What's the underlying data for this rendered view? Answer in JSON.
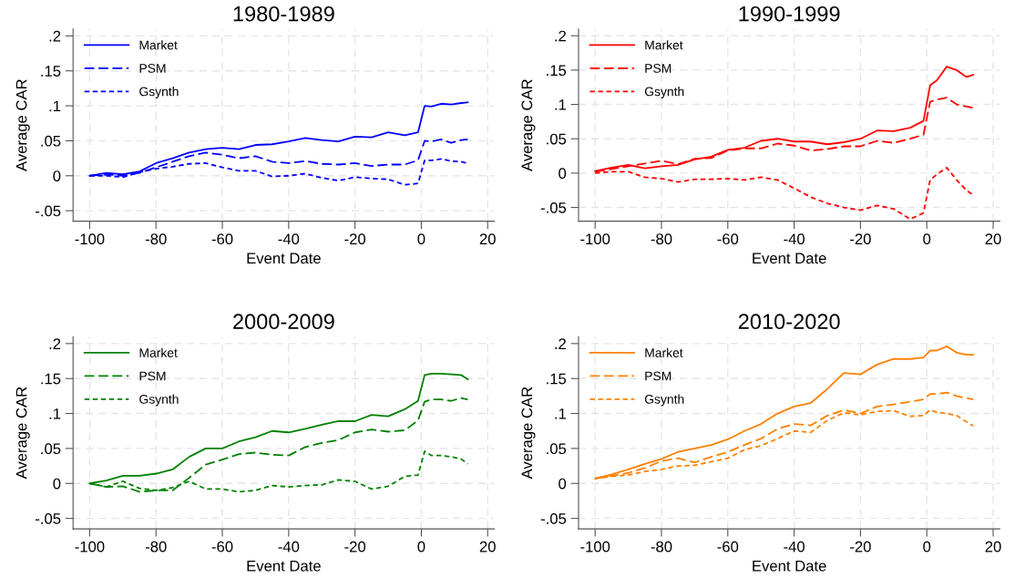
{
  "chart_data": [
    {
      "type": "line",
      "title": "1980-1989",
      "xlabel": "Event Date",
      "ylabel": "Average CAR",
      "xlim": [
        -105,
        22
      ],
      "ylim": [
        -0.065,
        0.21
      ],
      "xticks": [
        -100,
        -80,
        -60,
        -40,
        -20,
        0,
        20
      ],
      "yticks": [
        {
          "value": -0.05,
          "label": "-.05"
        },
        0,
        {
          "value": 0.05,
          "label": ".05"
        },
        {
          "value": 0.1,
          "label": ".1"
        },
        {
          "value": 0.15,
          "label": ".15"
        },
        {
          "value": 0.2,
          "label": ".2"
        }
      ],
      "grid": true,
      "legend": "top left",
      "x": [
        -100,
        -95,
        -90,
        -85,
        -80,
        -75,
        -70,
        -65,
        -60,
        -55,
        -50,
        -45,
        -40,
        -35,
        -30,
        -25,
        -20,
        -15,
        -10,
        -5,
        -1,
        1,
        3,
        6,
        9,
        12,
        14
      ],
      "series": [
        {
          "name": "Market",
          "color": "#0000ff",
          "line_style": "solid",
          "values": [
            0,
            0.004,
            0.002,
            0.006,
            0.018,
            0.025,
            0.033,
            0.038,
            0.04,
            0.038,
            0.044,
            0.045,
            0.049,
            0.054,
            0.051,
            0.049,
            0.056,
            0.055,
            0.062,
            0.058,
            0.062,
            0.1,
            0.099,
            0.103,
            0.102,
            0.104,
            0.105
          ]
        },
        {
          "name": "PSM",
          "color": "#0000ff",
          "line_style": "dashed",
          "values": [
            0,
            0.002,
            0,
            0.004,
            0.012,
            0.02,
            0.028,
            0.033,
            0.03,
            0.025,
            0.028,
            0.02,
            0.018,
            0.021,
            0.017,
            0.016,
            0.018,
            0.014,
            0.016,
            0.016,
            0.022,
            0.05,
            0.049,
            0.052,
            0.047,
            0.051,
            0.052
          ]
        },
        {
          "name": "Gsynth",
          "color": "#0000ff",
          "line_style": "dotted",
          "values": [
            0,
            0,
            -0.002,
            0.005,
            0.01,
            0.013,
            0.017,
            0.018,
            0.012,
            0.007,
            0.007,
            -0.001,
            0,
            0.003,
            -0.003,
            -0.007,
            -0.002,
            -0.004,
            -0.005,
            -0.013,
            -0.011,
            0.022,
            0.022,
            0.024,
            0.021,
            0.02,
            0.018
          ]
        }
      ]
    },
    {
      "type": "line",
      "title": "1990-1999",
      "xlabel": "Event Date",
      "ylabel": "Average CAR",
      "xlim": [
        -105,
        22
      ],
      "ylim": [
        -0.07,
        0.21
      ],
      "xticks": [
        -100,
        -80,
        -60,
        -40,
        -20,
        0,
        20
      ],
      "yticks": [
        {
          "value": -0.05,
          "label": "-.05"
        },
        0,
        {
          "value": 0.05,
          "label": ".05"
        },
        {
          "value": 0.1,
          "label": ".1"
        },
        {
          "value": 0.15,
          "label": ".15"
        },
        {
          "value": 0.2,
          "label": ".2"
        }
      ],
      "grid": true,
      "legend": "top left",
      "x": [
        -100,
        -95,
        -90,
        -85,
        -80,
        -75,
        -70,
        -65,
        -60,
        -55,
        -50,
        -45,
        -40,
        -35,
        -30,
        -25,
        -20,
        -15,
        -10,
        -5,
        -1,
        1,
        3,
        6,
        9,
        12,
        14
      ],
      "series": [
        {
          "name": "Market",
          "color": "#ff0000",
          "line_style": "solid",
          "values": [
            0.003,
            0.008,
            0.012,
            0.007,
            0.01,
            0.012,
            0.02,
            0.024,
            0.034,
            0.037,
            0.047,
            0.05,
            0.046,
            0.046,
            0.042,
            0.045,
            0.05,
            0.062,
            0.061,
            0.066,
            0.076,
            0.128,
            0.135,
            0.155,
            0.15,
            0.14,
            0.143
          ]
        },
        {
          "name": "PSM",
          "color": "#ff0000",
          "line_style": "dashed",
          "values": [
            0.002,
            0.006,
            0.01,
            0.014,
            0.018,
            0.013,
            0.021,
            0.022,
            0.033,
            0.036,
            0.036,
            0.043,
            0.04,
            0.033,
            0.035,
            0.039,
            0.039,
            0.047,
            0.044,
            0.05,
            0.056,
            0.104,
            0.107,
            0.11,
            0.1,
            0.097,
            0.095
          ]
        },
        {
          "name": "Gsynth",
          "color": "#ff0000",
          "line_style": "dotted",
          "values": [
            0,
            0.002,
            0.002,
            -0.006,
            -0.008,
            -0.013,
            -0.009,
            -0.009,
            -0.008,
            -0.01,
            -0.006,
            -0.01,
            -0.022,
            -0.035,
            -0.044,
            -0.05,
            -0.054,
            -0.047,
            -0.052,
            -0.067,
            -0.058,
            -0.01,
            -0.002,
            0.008,
            -0.01,
            -0.025,
            -0.032
          ]
        }
      ]
    },
    {
      "type": "line",
      "title": "2000-2009",
      "xlabel": "Event Date",
      "ylabel": "Average CAR",
      "xlim": [
        -105,
        22
      ],
      "ylim": [
        -0.065,
        0.21
      ],
      "xticks": [
        -100,
        -80,
        -60,
        -40,
        -20,
        0,
        20
      ],
      "yticks": [
        {
          "value": -0.05,
          "label": "-.05"
        },
        0,
        {
          "value": 0.05,
          "label": ".05"
        },
        {
          "value": 0.1,
          "label": ".1"
        },
        {
          "value": 0.15,
          "label": ".15"
        },
        {
          "value": 0.2,
          "label": ".2"
        }
      ],
      "grid": true,
      "legend": "top left",
      "x": [
        -100,
        -95,
        -90,
        -85,
        -80,
        -75,
        -70,
        -65,
        -60,
        -55,
        -50,
        -45,
        -40,
        -35,
        -30,
        -25,
        -20,
        -15,
        -10,
        -5,
        -1,
        1,
        3,
        6,
        9,
        12,
        14
      ],
      "series": [
        {
          "name": "Market",
          "color": "#008000",
          "line_style": "solid",
          "values": [
            0,
            0.004,
            0.011,
            0.011,
            0.014,
            0.02,
            0.038,
            0.05,
            0.05,
            0.06,
            0.066,
            0.075,
            0.073,
            0.078,
            0.084,
            0.089,
            0.089,
            0.098,
            0.096,
            0.106,
            0.118,
            0.155,
            0.157,
            0.157,
            0.156,
            0.155,
            0.149
          ]
        },
        {
          "name": "PSM",
          "color": "#008000",
          "line_style": "dashed",
          "values": [
            0,
            -0.005,
            -0.004,
            -0.012,
            -0.01,
            -0.01,
            0.008,
            0.027,
            0.034,
            0.042,
            0.044,
            0.041,
            0.04,
            0.052,
            0.058,
            0.062,
            0.073,
            0.077,
            0.074,
            0.076,
            0.09,
            0.117,
            0.12,
            0.12,
            0.118,
            0.122,
            0.12
          ]
        },
        {
          "name": "Gsynth",
          "color": "#008000",
          "line_style": "dotted",
          "values": [
            0,
            -0.005,
            0.003,
            -0.007,
            -0.01,
            -0.006,
            0.003,
            -0.008,
            -0.008,
            -0.012,
            -0.01,
            -0.003,
            -0.005,
            -0.003,
            -0.002,
            0.005,
            0.003,
            -0.008,
            -0.004,
            0.01,
            0.012,
            0.046,
            0.04,
            0.04,
            0.038,
            0.035,
            0.028
          ]
        }
      ]
    },
    {
      "type": "line",
      "title": "2010-2020",
      "xlabel": "Event Date",
      "ylabel": "Average CAR",
      "xlim": [
        -105,
        22
      ],
      "ylim": [
        -0.065,
        0.21
      ],
      "xticks": [
        -100,
        -80,
        -60,
        -40,
        -20,
        0,
        20
      ],
      "yticks": [
        {
          "value": -0.05,
          "label": "-.05"
        },
        0,
        {
          "value": 0.05,
          "label": ".05"
        },
        {
          "value": 0.1,
          "label": ".1"
        },
        {
          "value": 0.15,
          "label": ".15"
        },
        {
          "value": 0.2,
          "label": ".2"
        }
      ],
      "grid": true,
      "legend": "top left",
      "x": [
        -100,
        -95,
        -90,
        -85,
        -80,
        -75,
        -70,
        -65,
        -60,
        -55,
        -50,
        -45,
        -40,
        -35,
        -30,
        -25,
        -20,
        -15,
        -10,
        -5,
        -1,
        1,
        3,
        6,
        9,
        12,
        14
      ],
      "series": [
        {
          "name": "Market",
          "color": "#ff8000",
          "line_style": "solid",
          "values": [
            0.007,
            0.013,
            0.02,
            0.028,
            0.035,
            0.045,
            0.05,
            0.055,
            0.063,
            0.075,
            0.085,
            0.1,
            0.11,
            0.115,
            0.135,
            0.158,
            0.156,
            0.17,
            0.178,
            0.178,
            0.18,
            0.19,
            0.19,
            0.196,
            0.187,
            0.184,
            0.184
          ]
        },
        {
          "name": "PSM",
          "color": "#ff8000",
          "line_style": "dashed",
          "values": [
            0.007,
            0.011,
            0.015,
            0.022,
            0.032,
            0.036,
            0.03,
            0.038,
            0.045,
            0.055,
            0.064,
            0.078,
            0.085,
            0.083,
            0.097,
            0.105,
            0.1,
            0.11,
            0.113,
            0.117,
            0.12,
            0.128,
            0.128,
            0.13,
            0.125,
            0.122,
            0.12
          ]
        },
        {
          "name": "Gsynth",
          "color": "#ff8000",
          "line_style": "dotted",
          "values": [
            0.007,
            0.01,
            0.012,
            0.017,
            0.02,
            0.025,
            0.026,
            0.031,
            0.036,
            0.048,
            0.054,
            0.064,
            0.075,
            0.073,
            0.09,
            0.101,
            0.098,
            0.103,
            0.104,
            0.096,
            0.097,
            0.105,
            0.102,
            0.1,
            0.097,
            0.088,
            0.082
          ]
        }
      ]
    }
  ]
}
